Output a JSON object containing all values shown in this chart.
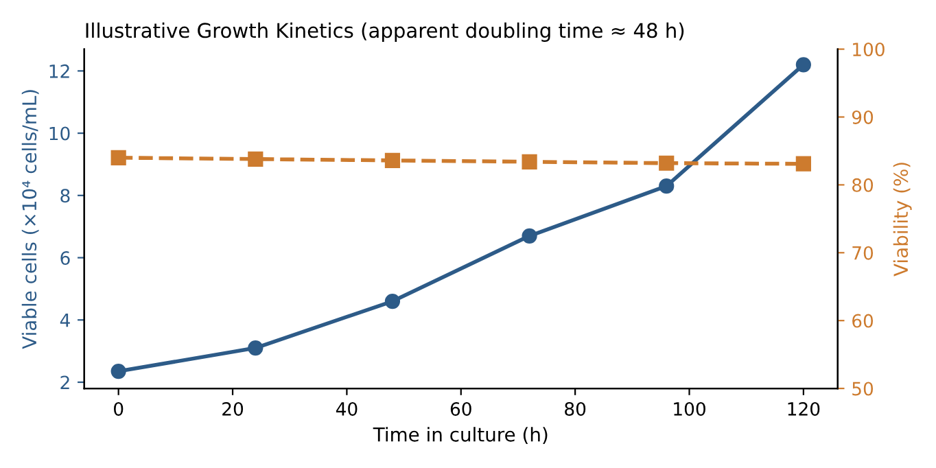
{
  "chart_data": {
    "type": "line",
    "title": "Illustrative Growth Kinetics (apparent doubling time ≈ 48 h)",
    "xlabel": "Time in culture (h)",
    "ylabel": "Viable cells (×10⁴ cells/mL)",
    "y2label": "Viability (%)",
    "x": [
      0,
      24,
      48,
      72,
      96,
      120
    ],
    "series": [
      {
        "color": "#2d5b88",
        "values": [
          2.35,
          3.1,
          4.6,
          6.7,
          8.3,
          12.2
        ],
        "marker": "circle",
        "line_style": "solid"
      },
      {
        "color": "#cd7b2e",
        "values": [
          84.0,
          83.8,
          83.6,
          83.4,
          83.2,
          83.1
        ],
        "marker": "square",
        "line_style": "dashed",
        "axis": "y2"
      }
    ],
    "xlim": [
      -6,
      126
    ],
    "xticks": [
      0,
      20,
      40,
      60,
      80,
      100,
      120
    ],
    "ylim": [
      1.8,
      12.7
    ],
    "yticks": [
      2,
      4,
      6,
      8,
      10,
      12
    ],
    "y2lim": [
      50,
      100
    ],
    "y2ticks": [
      50,
      60,
      70,
      80,
      90,
      100
    ],
    "grid": false,
    "legend": false
  }
}
